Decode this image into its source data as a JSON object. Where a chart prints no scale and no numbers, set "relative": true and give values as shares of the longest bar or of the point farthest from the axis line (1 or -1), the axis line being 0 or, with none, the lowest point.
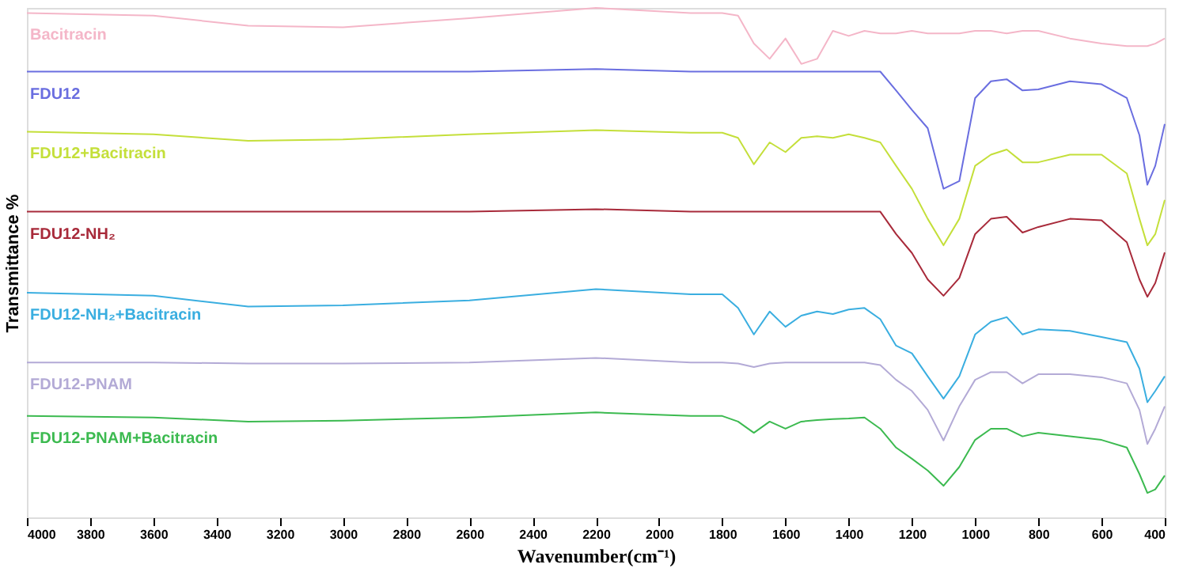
{
  "chart_data": {
    "type": "line",
    "relative": true,
    "xlabel": "Wavenumber(cm⁻¹)",
    "ylabel": "Transmittance %",
    "x": [
      4000,
      3600,
      3300,
      3000,
      2600,
      2200,
      1900,
      1800,
      1750,
      1700,
      1650,
      1600,
      1550,
      1500,
      1450,
      1400,
      1350,
      1300,
      1250,
      1200,
      1150,
      1100,
      1050,
      1000,
      950,
      900,
      850,
      800,
      700,
      600,
      520,
      480,
      455,
      430,
      400
    ],
    "xlim": [
      4000,
      400
    ],
    "xticks": [
      4000,
      3800,
      3600,
      3400,
      3200,
      3000,
      2800,
      2600,
      2400,
      2200,
      2000,
      1800,
      1600,
      1400,
      1200,
      1000,
      800,
      600,
      400
    ],
    "tick_labels": "x",
    "grid": false,
    "marker": "none",
    "line_style": "solid",
    "series": [
      {
        "name": "Bacitracin",
        "color": "#f4b6c8",
        "values": [
          0.99,
          0.985,
          0.965,
          0.962,
          0.98,
          1.0,
          0.99,
          0.99,
          0.985,
          0.93,
          0.9,
          0.94,
          0.89,
          0.9,
          0.955,
          0.945,
          0.955,
          0.95,
          0.95,
          0.955,
          0.95,
          0.95,
          0.95,
          0.955,
          0.955,
          0.95,
          0.955,
          0.955,
          0.94,
          0.93,
          0.925,
          0.925,
          0.925,
          0.93,
          0.94
        ]
      },
      {
        "name": "FDU12",
        "color": "#6a6ee0",
        "values": [
          0.875,
          0.875,
          0.875,
          0.875,
          0.875,
          0.88,
          0.875,
          0.875,
          0.875,
          0.875,
          0.875,
          0.875,
          0.875,
          0.875,
          0.875,
          0.875,
          0.875,
          0.875,
          0.838,
          0.8,
          0.764,
          0.645,
          0.66,
          0.823,
          0.856,
          0.86,
          0.838,
          0.84,
          0.856,
          0.85,
          0.823,
          0.75,
          0.653,
          0.69,
          0.772
        ]
      },
      {
        "name": "FDU12+Bacitracin",
        "color": "#c4df3a",
        "values": [
          0.757,
          0.752,
          0.739,
          0.742,
          0.752,
          0.76,
          0.755,
          0.755,
          0.745,
          0.693,
          0.736,
          0.717,
          0.745,
          0.748,
          0.745,
          0.752,
          0.745,
          0.736,
          0.69,
          0.645,
          0.586,
          0.534,
          0.586,
          0.69,
          0.712,
          0.722,
          0.697,
          0.697,
          0.712,
          0.712,
          0.675,
          0.586,
          0.534,
          0.556,
          0.623
        ]
      },
      {
        "name": "FDU12-NH₂",
        "color": "#a82a3a",
        "values": [
          0.6,
          0.6,
          0.6,
          0.6,
          0.6,
          0.605,
          0.6,
          0.6,
          0.6,
          0.6,
          0.6,
          0.6,
          0.6,
          0.6,
          0.6,
          0.6,
          0.6,
          0.6,
          0.556,
          0.519,
          0.467,
          0.435,
          0.47,
          0.556,
          0.586,
          0.59,
          0.559,
          0.57,
          0.586,
          0.583,
          0.54,
          0.467,
          0.433,
          0.46,
          0.52
        ]
      },
      {
        "name": "FDU12-NH₂+Bacitracin",
        "color": "#3aaee0",
        "values": [
          0.441,
          0.435,
          0.414,
          0.416,
          0.426,
          0.448,
          0.438,
          0.438,
          0.411,
          0.359,
          0.404,
          0.374,
          0.396,
          0.404,
          0.399,
          0.408,
          0.411,
          0.389,
          0.337,
          0.322,
          0.277,
          0.233,
          0.277,
          0.359,
          0.384,
          0.393,
          0.359,
          0.369,
          0.366,
          0.354,
          0.344,
          0.292,
          0.226,
          0.248,
          0.277
        ]
      },
      {
        "name": "FDU12-PNAM",
        "color": "#b3aad6",
        "values": [
          0.304,
          0.304,
          0.302,
          0.302,
          0.304,
          0.313,
          0.304,
          0.304,
          0.302,
          0.295,
          0.302,
          0.304,
          0.304,
          0.304,
          0.304,
          0.304,
          0.304,
          0.299,
          0.27,
          0.248,
          0.211,
          0.151,
          0.218,
          0.27,
          0.285,
          0.285,
          0.263,
          0.281,
          0.281,
          0.275,
          0.263,
          0.211,
          0.144,
          0.174,
          0.218
        ]
      },
      {
        "name": "FDU12-PNAM+Bacitracin",
        "color": "#3cba50",
        "values": [
          0.199,
          0.196,
          0.188,
          0.19,
          0.196,
          0.206,
          0.199,
          0.199,
          0.188,
          0.166,
          0.188,
          0.174,
          0.188,
          0.191,
          0.193,
          0.194,
          0.196,
          0.174,
          0.137,
          0.115,
          0.092,
          0.062,
          0.099,
          0.152,
          0.174,
          0.174,
          0.159,
          0.166,
          0.159,
          0.152,
          0.137,
          0.085,
          0.048,
          0.055,
          0.082
        ]
      }
    ]
  }
}
